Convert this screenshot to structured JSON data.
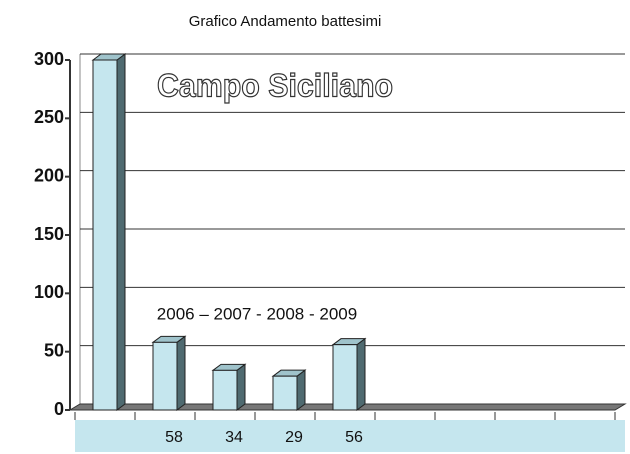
{
  "chart_data": {
    "type": "bar3d",
    "title": "Grafico Andamento battesimi",
    "annotations": [
      "Campo Siciliano",
      "2006 – 2007 - 2008 - 2009"
    ],
    "categories": [
      null,
      null,
      null,
      null,
      null,
      null,
      null,
      null,
      null
    ],
    "values": [
      300,
      58,
      34,
      29,
      56,
      null,
      null,
      null,
      null
    ],
    "value_labels": [
      null,
      "58",
      "34",
      "29",
      "56",
      null,
      null,
      null,
      null
    ],
    "color": "#c5e6ee",
    "ylim": [
      0,
      300
    ],
    "yticks": [
      0,
      50,
      100,
      150,
      200,
      250,
      300
    ],
    "grid": true
  }
}
